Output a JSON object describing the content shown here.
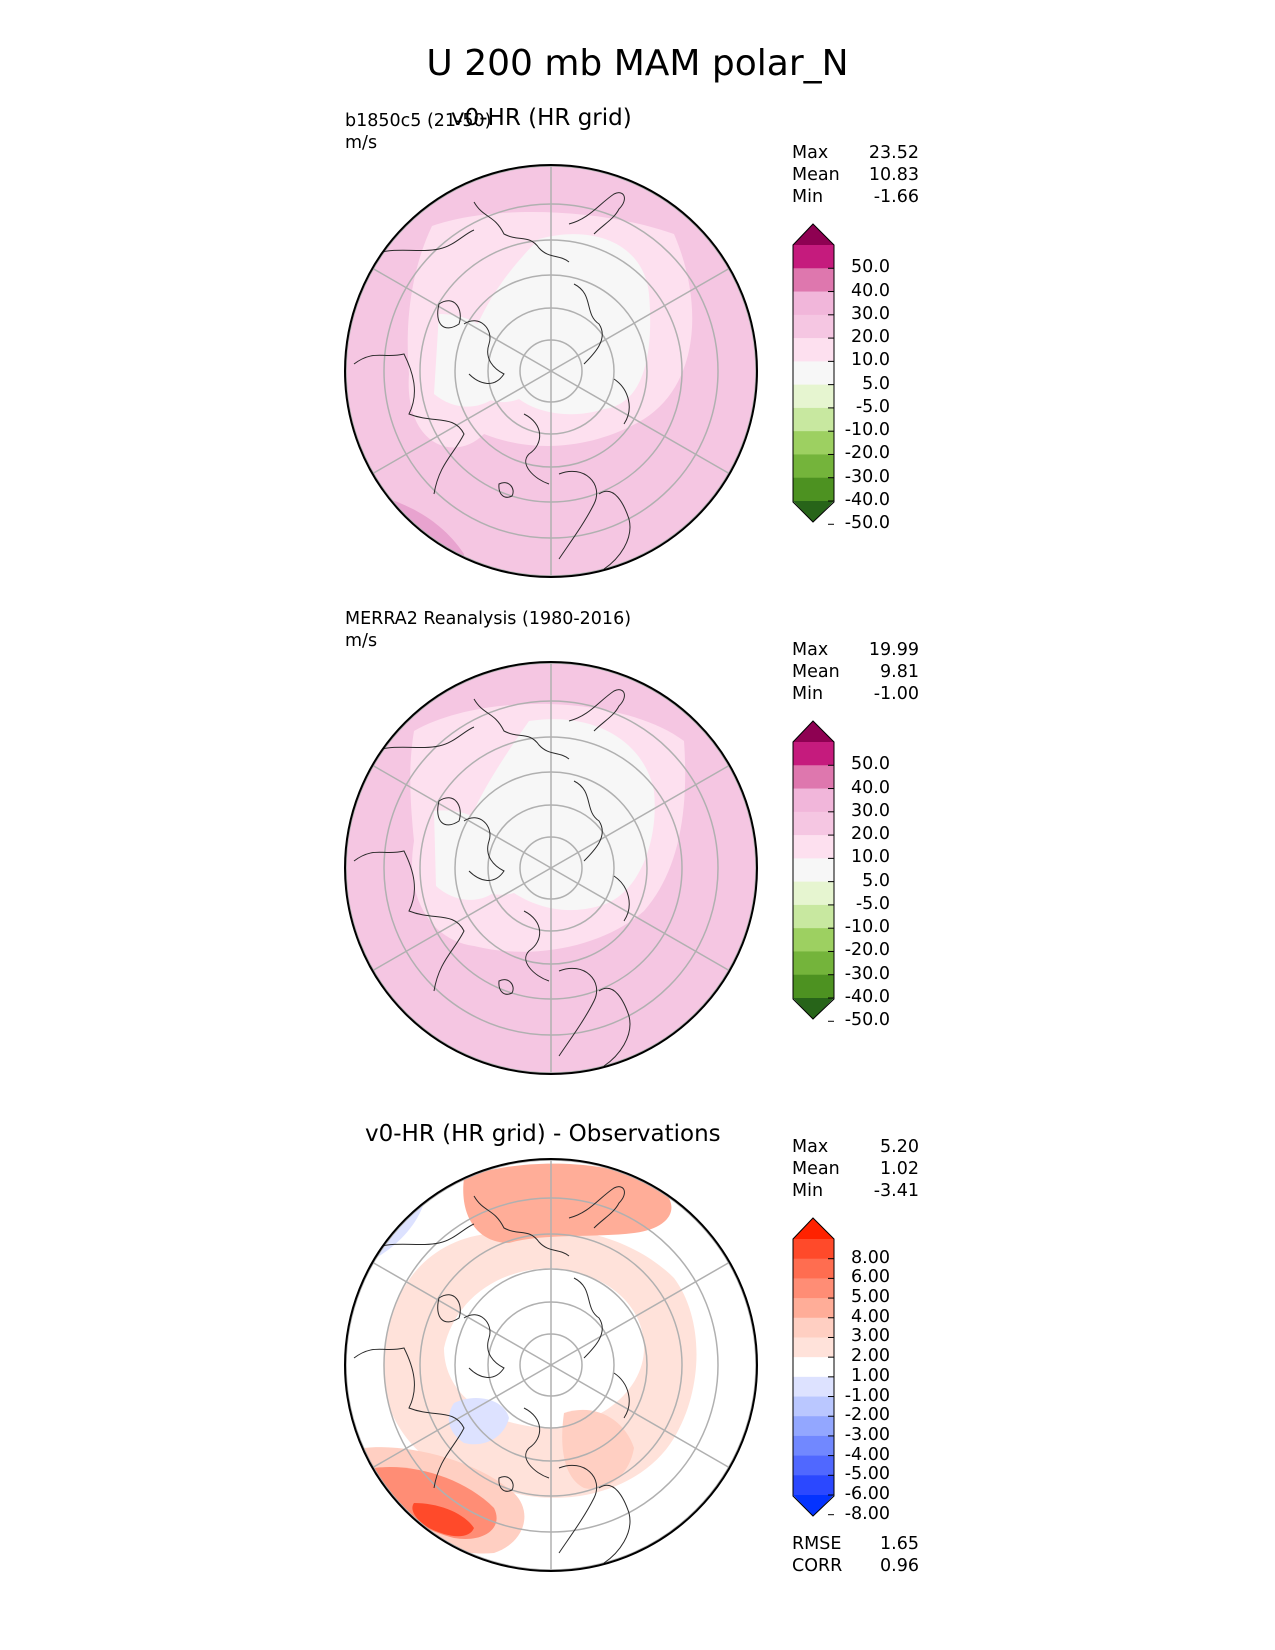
{
  "figure": {
    "title": "U 200 mb MAM polar_N"
  },
  "chart_data": [
    {
      "type": "heatmap",
      "projection": "north polar stereographic",
      "title": "v0-HR (HR grid)",
      "left_label": "b1850c5 (21-50)",
      "units": "m/s",
      "stats": [
        {
          "label": "Max",
          "value": "23.52"
        },
        {
          "label": "Mean",
          "value": "10.83"
        },
        {
          "label": "Min",
          "value": "-1.66"
        }
      ],
      "colorbar": {
        "levels": [
          "50.0",
          "40.0",
          "30.0",
          "20.0",
          "10.0",
          "5.0",
          "-5.0",
          "-10.0",
          "-20.0",
          "-30.0",
          "-40.0",
          "-50.0"
        ],
        "colors": [
          "#8e0152",
          "#c51b7d",
          "#de77ae",
          "#f1b6da",
          "#f5c6e2",
          "#fde0ef",
          "#f7f7f7",
          "#e6f5d0",
          "#c8e8a0",
          "#9dd061",
          "#74b43b",
          "#4d9221",
          "#276419"
        ]
      },
      "field_summary": "westerlies 10-20 m/s over most of hemisphere; weak (<5) over Arctic and Canada; strongest 20-30 over North Pacific"
    },
    {
      "type": "heatmap",
      "projection": "north polar stereographic",
      "title": "",
      "left_label": "MERRA2 Reanalysis (1980-2016)",
      "units": "m/s",
      "stats": [
        {
          "label": "Max",
          "value": "19.99"
        },
        {
          "label": "Mean",
          "value": "9.81"
        },
        {
          "label": "Min",
          "value": "-1.00"
        }
      ],
      "colorbar": {
        "levels": [
          "50.0",
          "40.0",
          "30.0",
          "20.0",
          "10.0",
          "5.0",
          "-5.0",
          "-10.0",
          "-20.0",
          "-30.0",
          "-40.0",
          "-50.0"
        ],
        "colors": [
          "#8e0152",
          "#c51b7d",
          "#de77ae",
          "#f1b6da",
          "#f5c6e2",
          "#fde0ef",
          "#f7f7f7",
          "#e6f5d0",
          "#c8e8a0",
          "#9dd061",
          "#74b43b",
          "#4d9221",
          "#276419"
        ]
      },
      "field_summary": "westerlies 10-20 m/s over mid latitudes; weak (<5) over Arctic and Canada"
    },
    {
      "type": "heatmap",
      "projection": "north polar stereographic",
      "title": "v0-HR (HR grid) - Observations",
      "left_label": "",
      "units": "",
      "stats": [
        {
          "label": "Max",
          "value": "5.20"
        },
        {
          "label": "Mean",
          "value": "1.02"
        },
        {
          "label": "Min",
          "value": "-3.41"
        }
      ],
      "metrics": [
        {
          "label": "RMSE",
          "value": "1.65"
        },
        {
          "label": "CORR",
          "value": "0.96"
        }
      ],
      "colorbar": {
        "levels": [
          "8.00",
          "6.00",
          "5.00",
          "4.00",
          "3.00",
          "2.00",
          "1.00",
          "-1.00",
          "-2.00",
          "-3.00",
          "-4.00",
          "-5.00",
          "-6.00",
          "-8.00"
        ],
        "colors": [
          "#ff2200",
          "#ff4a2a",
          "#ff6d50",
          "#ff8d75",
          "#ffad98",
          "#ffcfc2",
          "#ffe2da",
          "#ffffff",
          "#dde2ff",
          "#bac7ff",
          "#93a7ff",
          "#7188ff",
          "#5068ff",
          "#2b48ff",
          "#0433ff"
        ]
      },
      "field_summary": "positive bias over North Pacific (up to ~5) and Eurasia; slight negative bias over Alaska and Greenland"
    }
  ]
}
